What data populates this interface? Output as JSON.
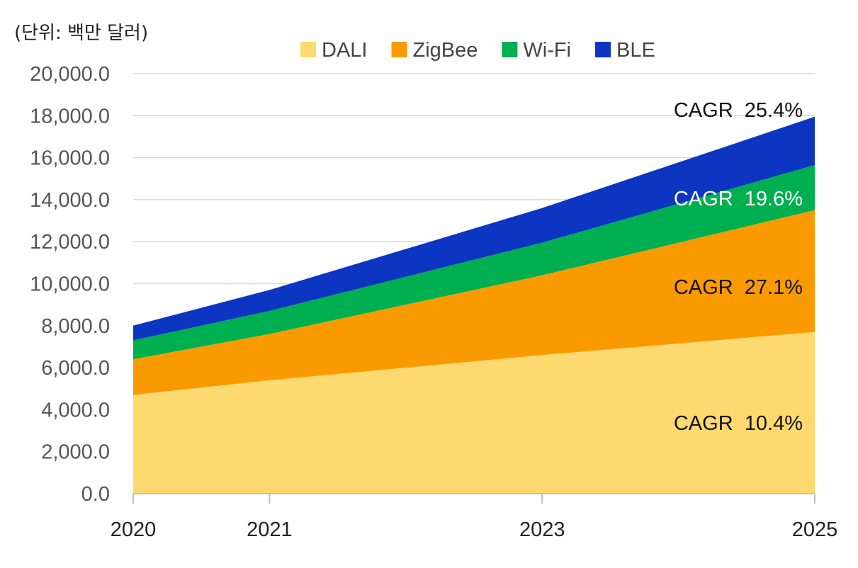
{
  "chart_data": {
    "type": "area",
    "stacked": true,
    "unit_label": "(단위: 백만 달러)",
    "categories": [
      "2020",
      "2021",
      "2023",
      "2025"
    ],
    "ylim": [
      0,
      20000
    ],
    "yticks": [
      "0.0",
      "2,000.0",
      "4,000.0",
      "6,000.0",
      "8,000.0",
      "10,000.0",
      "12,000.0",
      "14,000.0",
      "16,000.0",
      "18,000.0",
      "20,000.0"
    ],
    "grid": true,
    "legend_position": "top",
    "series": [
      {
        "name": "DALI",
        "color": "#fdd96f",
        "values": [
          4700,
          5400,
          6600,
          7700
        ]
      },
      {
        "name": "ZigBee",
        "color": "#f99b00",
        "values": [
          1700,
          2200,
          3800,
          5800
        ]
      },
      {
        "name": "Wi-Fi",
        "color": "#00b050",
        "values": [
          900,
          1100,
          1550,
          2150
        ]
      },
      {
        "name": "BLE",
        "color": "#0c35c2",
        "values": [
          700,
          1000,
          1650,
          2300
        ]
      }
    ],
    "annotations": [
      {
        "text": "CAGR  25.4%",
        "series": "BLE",
        "color": "#111111"
      },
      {
        "text": "CAGR  19.6%",
        "series": "Wi-Fi",
        "color": "#ffffff"
      },
      {
        "text": "CAGR  27.1%",
        "series": "ZigBee",
        "color": "#111111"
      },
      {
        "text": "CAGR  10.4%",
        "series": "DALI",
        "color": "#111111"
      }
    ]
  }
}
